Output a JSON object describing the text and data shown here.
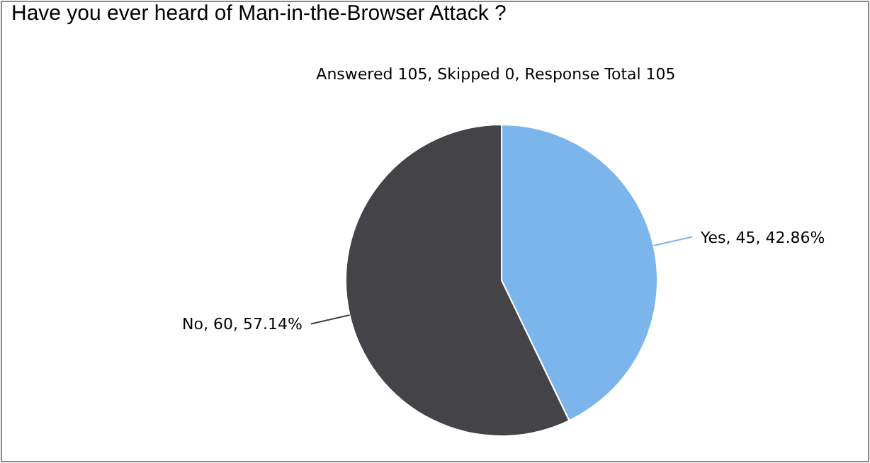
{
  "chart_data": {
    "type": "pie",
    "title": "Have you ever heard of Man-in-the-Browser Attack ?",
    "subtitle": "Answered 105, Skipped 0, Response Total 105",
    "categories": [
      "Yes",
      "No"
    ],
    "values": [
      45,
      60
    ],
    "colors": [
      "#7cb5ec",
      "#434348"
    ],
    "value_labels": [
      ", 45, 42.86%",
      ", 60, 57.14%"
    ]
  }
}
